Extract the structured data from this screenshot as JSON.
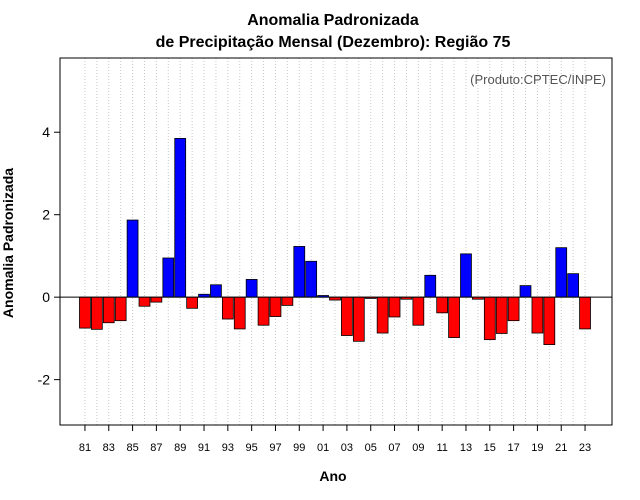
{
  "chart_data": {
    "type": "bar",
    "title": "Anomalia Padronizada",
    "subtitle": "de Precipitação Mensal (Dezembro): Região 75",
    "xlabel": "Ano",
    "ylabel": "Anomalia Padronizada",
    "credit": "(Produto:CPTEC/INPE)",
    "ylim": [
      -3.1,
      5.8
    ],
    "yticks": [
      -2,
      0,
      2,
      4
    ],
    "categories": [
      "81",
      "82",
      "83",
      "84",
      "85",
      "86",
      "87",
      "88",
      "89",
      "90",
      "91",
      "92",
      "93",
      "94",
      "95",
      "96",
      "97",
      "98",
      "99",
      "00",
      "01",
      "02",
      "03",
      "04",
      "05",
      "06",
      "07",
      "08",
      "09",
      "10",
      "11",
      "12",
      "13",
      "14",
      "15",
      "16",
      "17",
      "18",
      "19",
      "20",
      "21",
      "22",
      "23"
    ],
    "xtick_labels": [
      "81",
      "83",
      "85",
      "87",
      "89",
      "91",
      "93",
      "95",
      "97",
      "99",
      "01",
      "03",
      "05",
      "07",
      "09",
      "11",
      "13",
      "15",
      "17",
      "19",
      "21",
      "23"
    ],
    "values": [
      -0.75,
      -0.78,
      -0.62,
      -0.57,
      1.87,
      -0.22,
      -0.12,
      0.95,
      3.85,
      -0.27,
      0.07,
      0.3,
      -0.53,
      -0.77,
      0.43,
      -0.68,
      -0.47,
      -0.2,
      1.23,
      0.87,
      0.04,
      -0.07,
      -0.93,
      -1.07,
      -0.03,
      -0.87,
      -0.48,
      -0.05,
      -0.68,
      0.53,
      -0.38,
      -0.98,
      1.05,
      -0.05,
      -1.03,
      -0.88,
      -0.57,
      0.28,
      -0.87,
      -1.15,
      1.2,
      0.57,
      -0.77
    ],
    "colors": {
      "positive": "#0000ff",
      "negative": "#ff0000",
      "grid": "#c8c8c8"
    },
    "grid": true
  }
}
